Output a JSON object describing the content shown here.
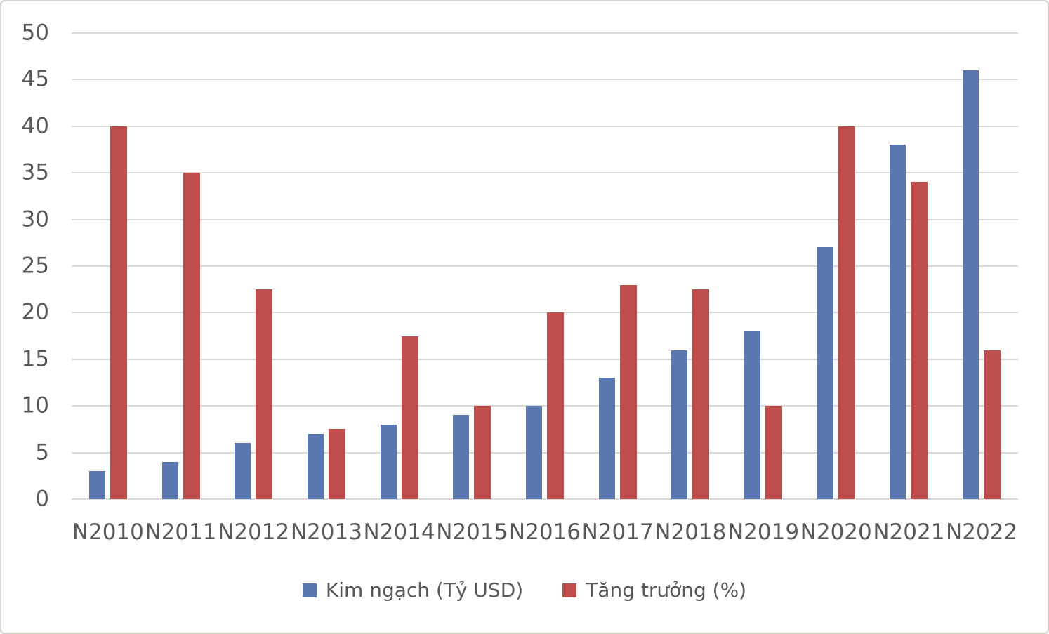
{
  "chart_data": {
    "type": "bar",
    "title": "",
    "xlabel": "",
    "ylabel": "",
    "categories": [
      "N2010",
      "N2011",
      "N2012",
      "N2013",
      "N2014",
      "N2015",
      "N2016",
      "N2017",
      "N2018",
      "N2019",
      "N2020",
      "N2021",
      "N2022"
    ],
    "series": [
      {
        "name": "Kim ngạch (Tỷ USD)",
        "color": "#5B77B0",
        "values": [
          3,
          4,
          6,
          7,
          8,
          9,
          10,
          13,
          16,
          18,
          27,
          38,
          46
        ]
      },
      {
        "name": "Tăng trưởng (%)",
        "color": "#BE4E4B",
        "values": [
          40,
          35,
          22.5,
          7.5,
          17.5,
          10,
          20,
          23,
          22.5,
          10,
          40,
          34,
          16
        ]
      }
    ],
    "ylim": [
      0,
      50
    ],
    "yticks": [
      0,
      5,
      10,
      15,
      20,
      25,
      30,
      35,
      40,
      45,
      50
    ],
    "grid": true,
    "gridline_color": "#d9d9d9",
    "axis_text_color": "#595959",
    "legend_position": "bottom"
  }
}
